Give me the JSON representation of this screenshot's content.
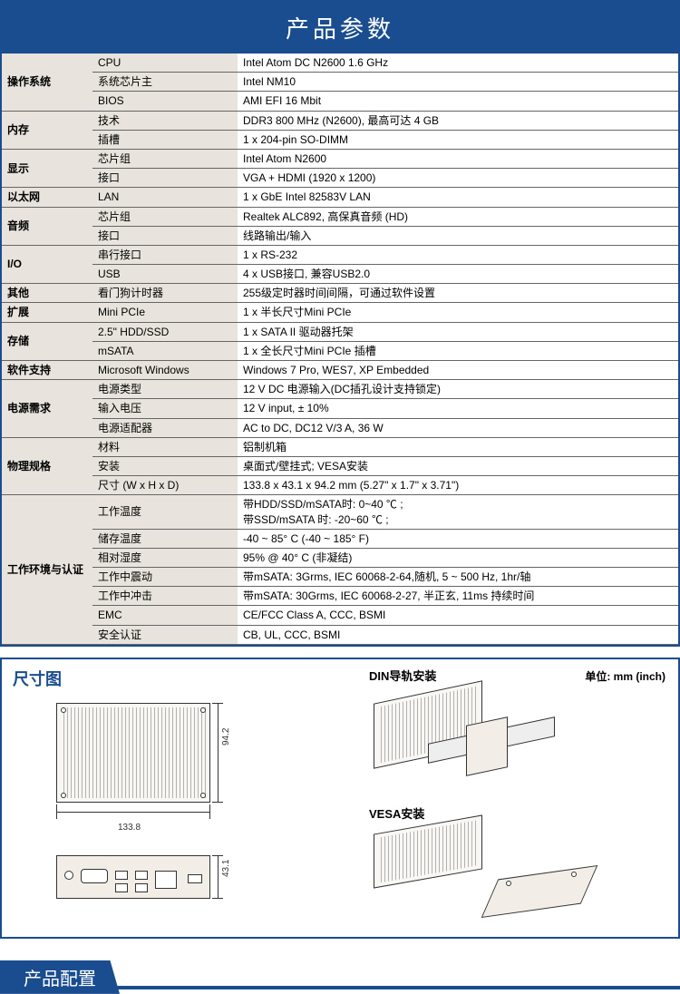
{
  "colors": {
    "primary": "#1a4d8f",
    "table_bg": "#e8e4dd",
    "value_bg": "#ffffff",
    "border": "#666666"
  },
  "spec_header": "产品参数",
  "groups": [
    {
      "category": "操作系统",
      "rows": [
        {
          "sub": "CPU",
          "val": "Intel Atom DC N2600 1.6 GHz"
        },
        {
          "sub": "系统芯片主",
          "val": "Intel NM10"
        },
        {
          "sub": "BIOS",
          "val": "AMI EFI 16 Mbit"
        }
      ]
    },
    {
      "category": "内存",
      "rows": [
        {
          "sub": "技术",
          "val": "DDR3 800 MHz (N2600), 最高可达 4 GB"
        },
        {
          "sub": "插槽",
          "val": "1 x 204-pin SO-DIMM"
        }
      ]
    },
    {
      "category": "显示",
      "rows": [
        {
          "sub": "芯片组",
          "val": "Intel Atom N2600"
        },
        {
          "sub": "接口",
          "val": "VGA + HDMI (1920 x 1200)"
        }
      ]
    },
    {
      "category": "以太网",
      "rows": [
        {
          "sub": "LAN",
          "val": "1 x GbE Intel 82583V LAN"
        }
      ]
    },
    {
      "category": "音频",
      "rows": [
        {
          "sub": "芯片组",
          "val": "Realtek ALC892, 高保真音频 (HD)"
        },
        {
          "sub": "接口",
          "val": "线路输出/输入"
        }
      ]
    },
    {
      "category": "I/O",
      "rows": [
        {
          "sub": "串行接口",
          "val": "1 x RS-232"
        },
        {
          "sub": "USB",
          "val": "4 x USB接口, 兼容USB2.0"
        }
      ]
    },
    {
      "category": "其他",
      "rows": [
        {
          "sub": "看门狗计时器",
          "val": "255级定时器时间间隔，可通过软件设置"
        }
      ]
    },
    {
      "category": "扩展",
      "rows": [
        {
          "sub": "Mini PCIe",
          "val": "1 x 半长尺寸Mini PCIe"
        }
      ]
    },
    {
      "category": "存储",
      "rows": [
        {
          "sub": "2.5\" HDD/SSD",
          "val": "1 x SATA II 驱动器托架"
        },
        {
          "sub": "mSATA",
          "val": "1 x 全长尺寸Mini PCIe  插槽"
        }
      ]
    },
    {
      "category": "软件支持",
      "rows": [
        {
          "sub": "Microsoft Windows",
          "val": "Windows 7 Pro, WES7, XP Embedded"
        }
      ]
    },
    {
      "category": "电源需求",
      "rows": [
        {
          "sub": "电源类型",
          "val": "12 V DC 电源输入(DC插孔设计支持锁定)"
        },
        {
          "sub": "输入电压",
          "val": "12 V input, ± 10%"
        },
        {
          "sub": "电源适配器",
          "val": "AC to DC, DC12 V/3 A, 36 W"
        }
      ]
    },
    {
      "category": "物理规格",
      "rows": [
        {
          "sub": "材料",
          "val": "铝制机箱"
        },
        {
          "sub": "安装",
          "val": "桌面式/壁挂式; VESA安装"
        },
        {
          "sub": "尺寸 (W x H x D)",
          "val": "133.8 x 43.1 x 94.2 mm (5.27\" x 1.7\" x 3.71\")"
        }
      ]
    },
    {
      "category": "工作环境与认证",
      "rows": [
        {
          "sub": "工作温度",
          "val": "带HDD/SSD/mSATA时: 0~40 ℃ ;\n带SSD/mSATA 时: -20~60 ℃ ;"
        },
        {
          "sub": "储存温度",
          "val": "-40 ~ 85° C (-40 ~ 185° F)"
        },
        {
          "sub": "相对湿度",
          "val": "95% @ 40° C (非凝结)"
        },
        {
          "sub": "工作中震动",
          "val": "带mSATA: 3Grms, IEC 60068-2-64,随机, 5 ~ 500 Hz, 1hr/轴"
        },
        {
          "sub": "工作中冲击",
          "val": "带mSATA: 30Grms, IEC 60068-2-27, 半正玄, 11ms 持续时间"
        },
        {
          "sub": "EMC",
          "val": "CE/FCC Class A, CCC, BSMI"
        },
        {
          "sub": "安全认证",
          "val": "CB, UL, CCC, BSMI"
        }
      ]
    }
  ],
  "dim": {
    "title": "尺寸图",
    "unit_label": "单位: mm (inch)",
    "din_label": "DIN导轨安装",
    "vesa_label": "VESA安装",
    "width_mm": "133.8",
    "depth_mm": "94.2",
    "height_mm": "43.1"
  },
  "config_title": "产品配置"
}
